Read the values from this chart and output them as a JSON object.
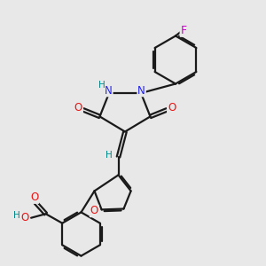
{
  "background_color": "#e8e8e8",
  "bond_color": "#1a1a1a",
  "N_color": "#2222ee",
  "O_color": "#ee1111",
  "F_color": "#cc00cc",
  "H_color": "#008888",
  "figsize": [
    3.0,
    3.0
  ],
  "dpi": 100,
  "xlim": [
    0,
    10
  ],
  "ylim": [
    0,
    10
  ]
}
